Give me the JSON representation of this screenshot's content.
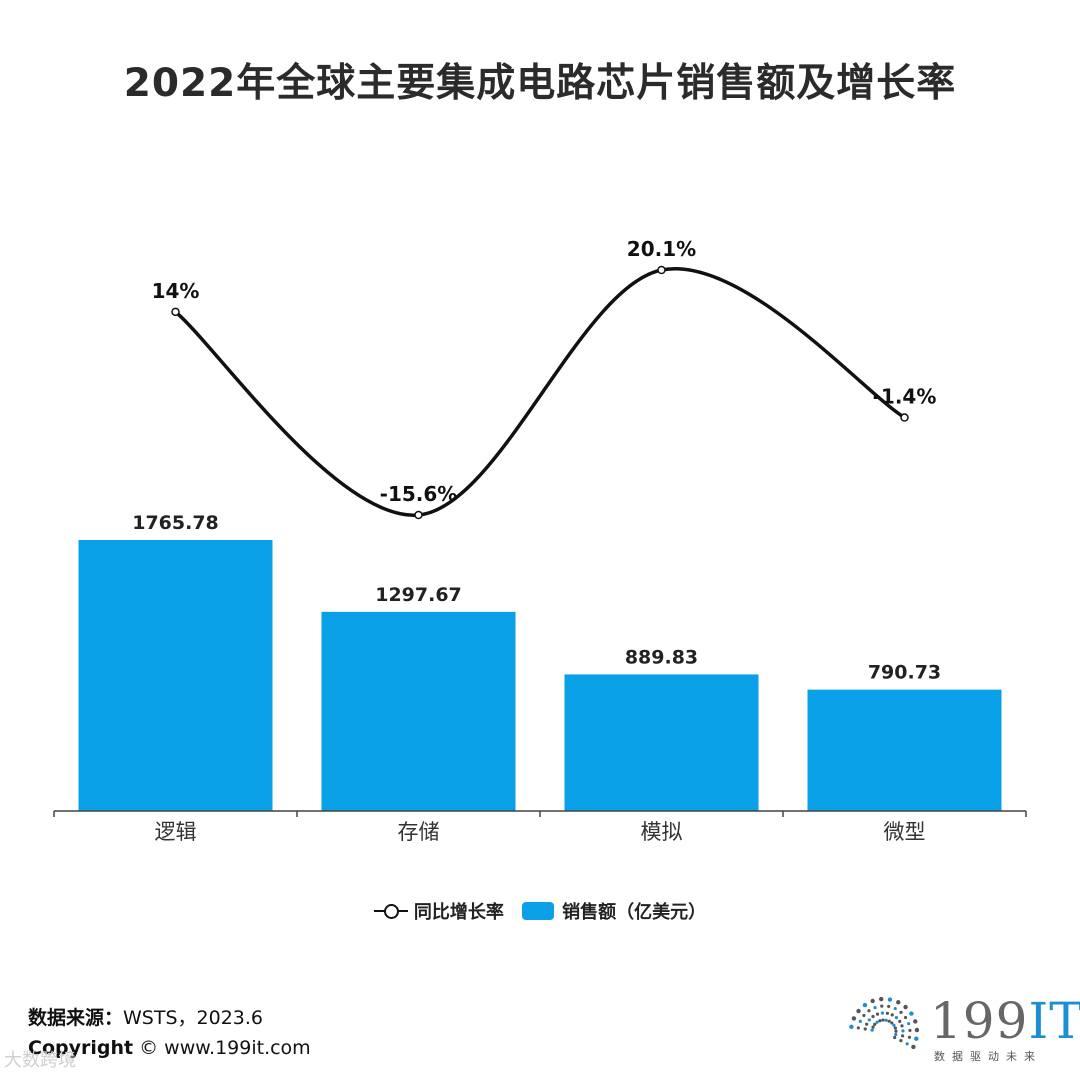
{
  "title": "2022年全球主要集成电路芯片销售额及增长率",
  "chart_data": {
    "type": "bar",
    "categories": [
      "逻辑",
      "存储",
      "模拟",
      "微型"
    ],
    "series": [
      {
        "name": "销售额（亿美元）",
        "kind": "bar",
        "values": [
          1765.78,
          1297.67,
          889.83,
          790.73
        ],
        "labels": [
          "1765.78",
          "1297.67",
          "889.83",
          "790.73"
        ],
        "color": "#0aa0e8"
      },
      {
        "name": "同比增长率",
        "kind": "line",
        "values": [
          14,
          -15.6,
          20.1,
          -1.4
        ],
        "labels": [
          "14%",
          "-15.6%",
          "20.1%",
          "-1.4%"
        ],
        "color": "#111111"
      }
    ],
    "ylim_bar": [
      0,
      1765.78
    ],
    "ylim_line": [
      -15.6,
      20.1
    ],
    "legend": "bottom",
    "grid": false
  },
  "legend": {
    "line_label": "同比增长率",
    "bar_label": "销售额（亿美元）"
  },
  "source": {
    "label": "数据来源：",
    "value": "WSTS，2023.6"
  },
  "copyright": {
    "label": "Copyright",
    "value": "© www.199it.com"
  },
  "logo": {
    "brand_num": "199",
    "brand_it": "IT",
    "slogan": "数据驱动未来"
  },
  "watermark": "大数跨境"
}
